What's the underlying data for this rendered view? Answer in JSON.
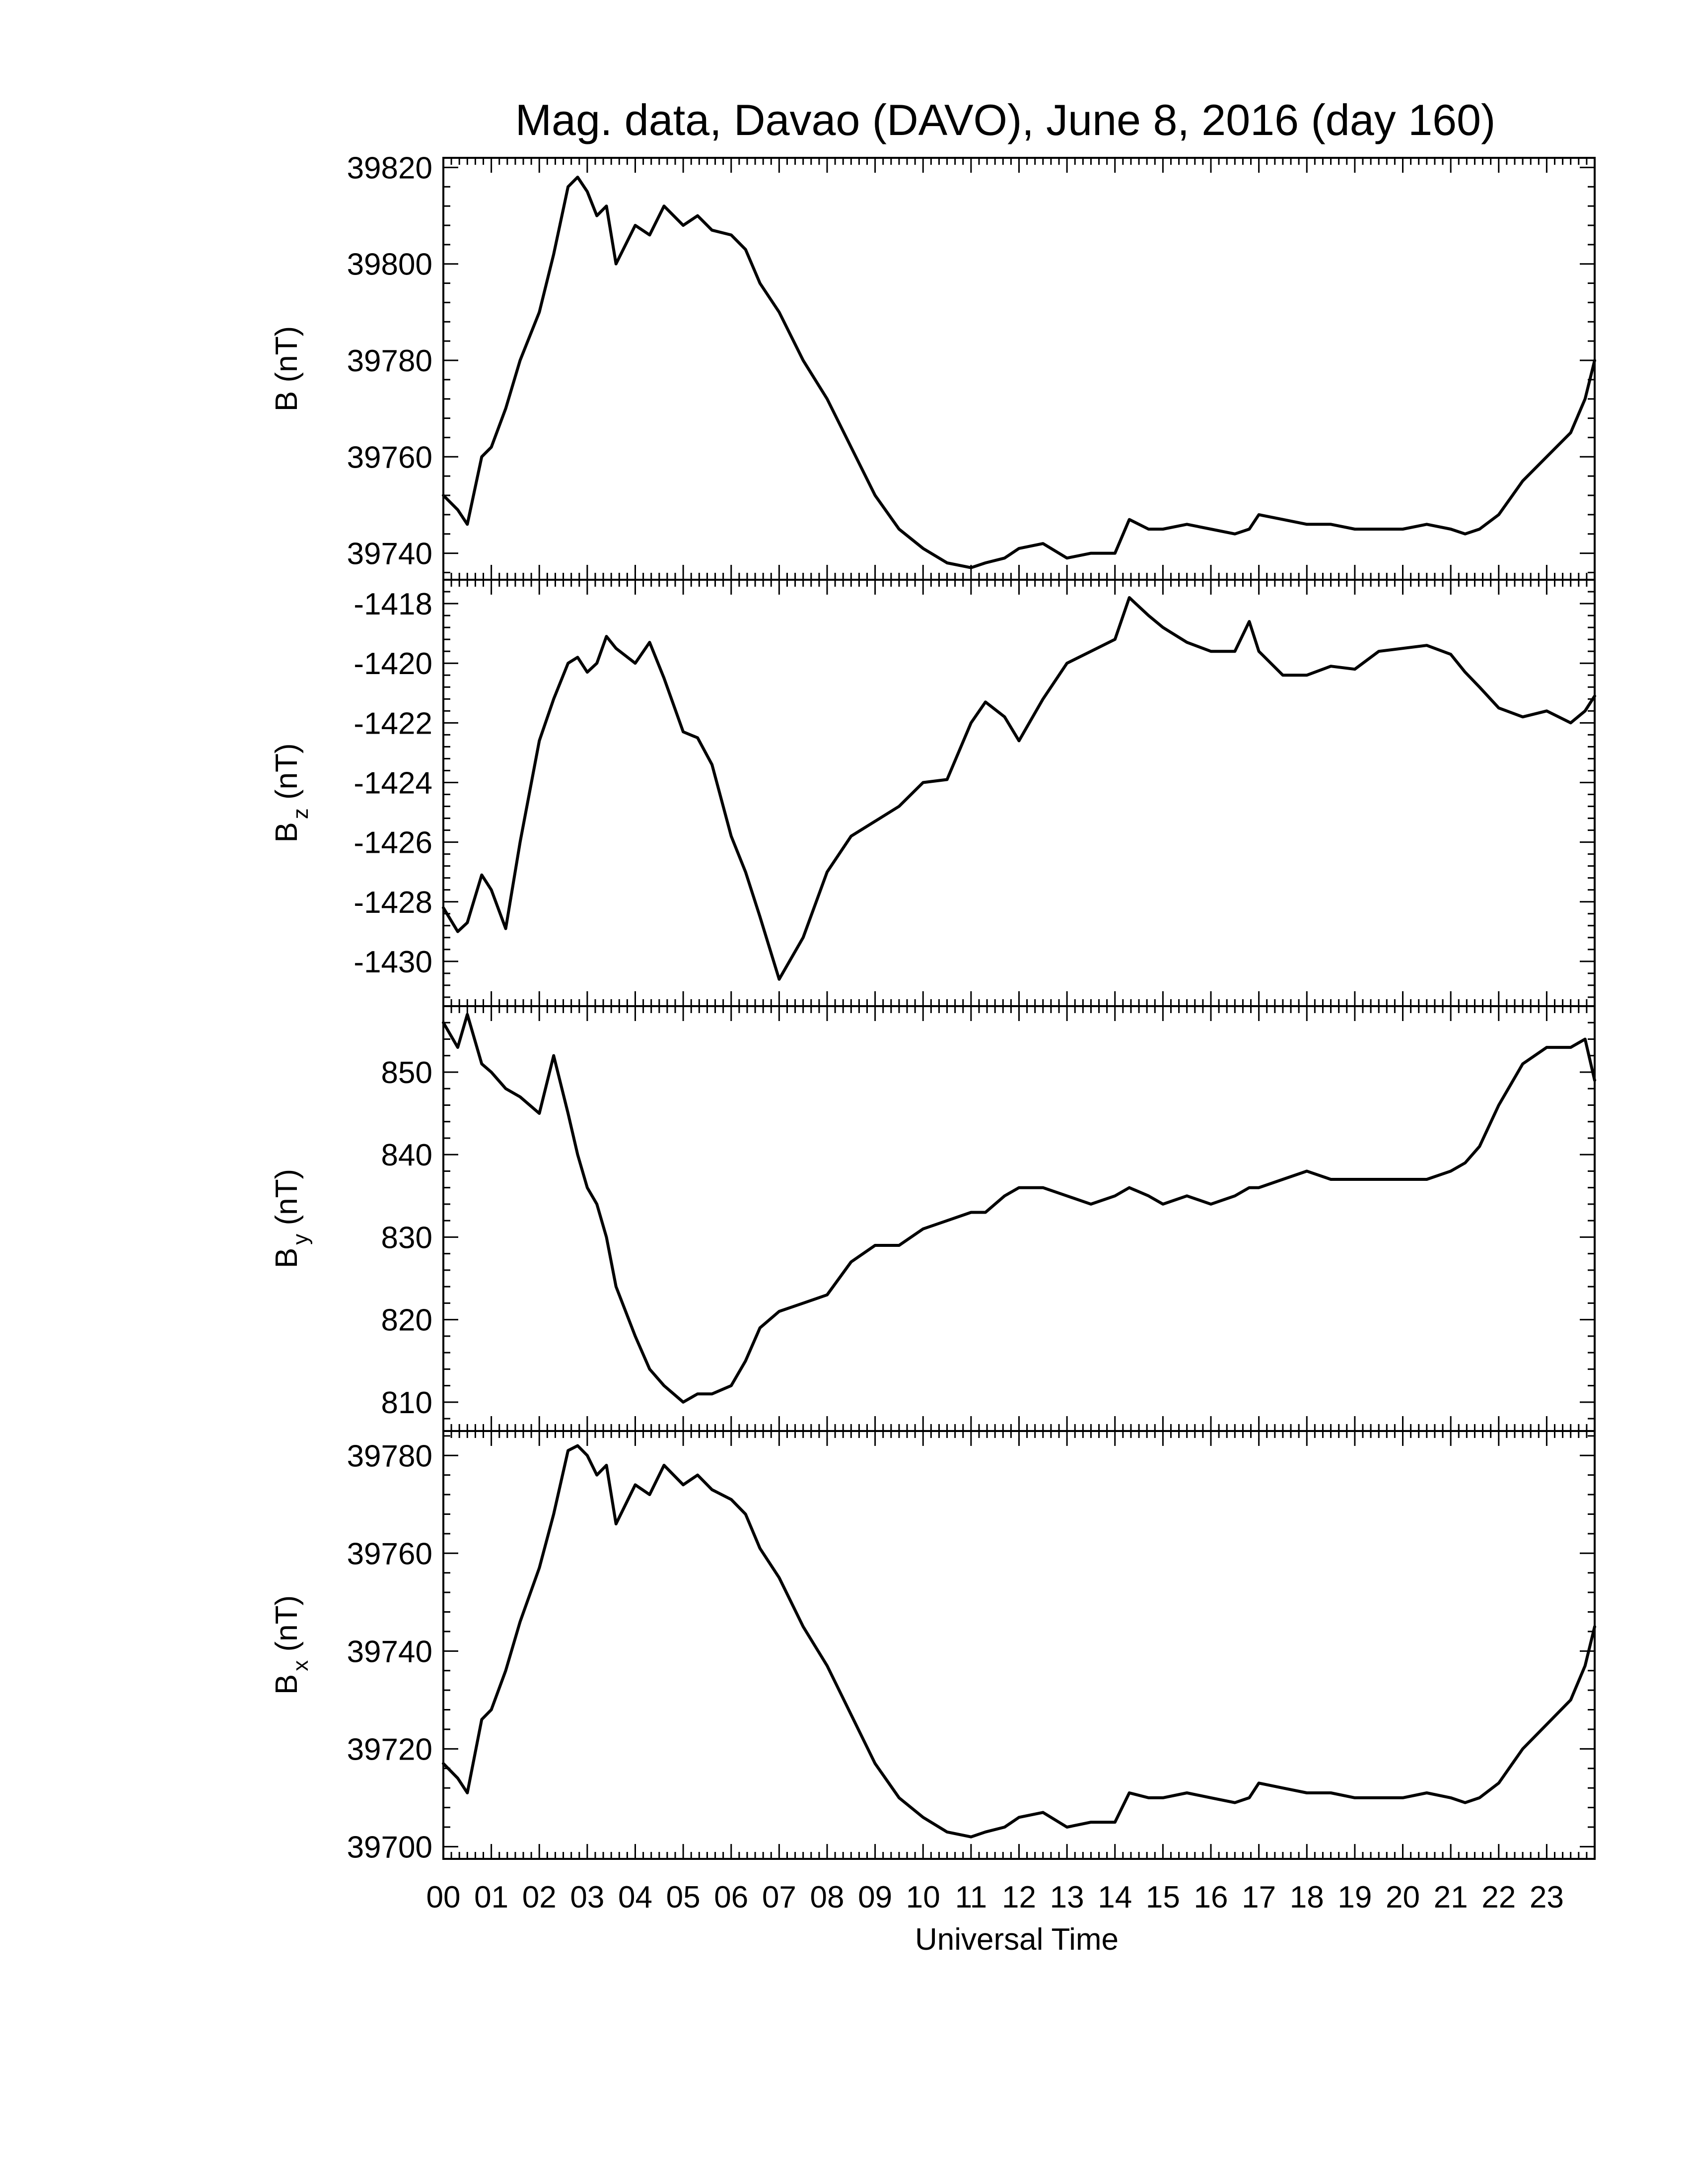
{
  "figure": {
    "title": "Mag. data, Davao (DAVO), June 8, 2016 (day 160)",
    "xlabel": "Universal Time",
    "line_color": "#000000",
    "background": "#ffffff"
  },
  "chart_data": [
    {
      "type": "line",
      "title": "Mag. data, Davao (DAVO), June 8, 2016 (day 160)",
      "ylabel": "B (nT)",
      "ylabel_main": "B",
      "ylabel_sub": "",
      "ylabel_unit": " (nT)",
      "xlim": [
        0,
        24
      ],
      "ylim": [
        39734.5,
        39822
      ],
      "yticks": [
        39740,
        39760,
        39780,
        39800,
        39820
      ],
      "ytick_labels": [
        "39740",
        "39760",
        "39780",
        "39800",
        "39820"
      ],
      "x": [
        0,
        0.3,
        0.5,
        0.8,
        1.0,
        1.3,
        1.6,
        2.0,
        2.3,
        2.6,
        2.8,
        3.0,
        3.2,
        3.4,
        3.6,
        4.0,
        4.3,
        4.6,
        5.0,
        5.3,
        5.6,
        6.0,
        6.3,
        6.6,
        7.0,
        7.5,
        8.0,
        8.5,
        9.0,
        9.5,
        10.0,
        10.5,
        11.0,
        11.3,
        11.7,
        12.0,
        12.5,
        13.0,
        13.5,
        14.0,
        14.3,
        14.7,
        15.0,
        15.5,
        16.0,
        16.5,
        16.8,
        17.0,
        17.5,
        18.0,
        18.5,
        19.0,
        19.5,
        20.0,
        20.5,
        21.0,
        21.3,
        21.6,
        22.0,
        22.5,
        23.0,
        23.5,
        23.8,
        24.0
      ],
      "values": [
        39752,
        39749,
        39746,
        39760,
        39762,
        39770,
        39780,
        39790,
        39802,
        39816,
        39818,
        39815,
        39810,
        39812,
        39800,
        39808,
        39806,
        39812,
        39808,
        39810,
        39807,
        39806,
        39803,
        39796,
        39790,
        39780,
        39772,
        39762,
        39752,
        39745,
        39741,
        39738,
        39737,
        39738,
        39739,
        39741,
        39742,
        39739,
        39740,
        39740,
        39747,
        39745,
        39745,
        39746,
        39745,
        39744,
        39745,
        39748,
        39747,
        39746,
        39746,
        39745,
        39745,
        39745,
        39746,
        39745,
        39744,
        39745,
        39748,
        39755,
        39760,
        39765,
        39772,
        39780
      ]
    },
    {
      "type": "line",
      "ylabel": "Bz (nT)",
      "ylabel_main": "B",
      "ylabel_sub": "z",
      "ylabel_unit": " (nT)",
      "xlim": [
        0,
        24
      ],
      "ylim": [
        -1431.5,
        -1417.2
      ],
      "yticks": [
        -1430,
        -1428,
        -1426,
        -1424,
        -1422,
        -1420,
        -1418
      ],
      "ytick_labels": [
        "-1430",
        "-1428",
        "-1426",
        "-1424",
        "-1422",
        "-1420",
        "-1418"
      ],
      "x": [
        0,
        0.3,
        0.5,
        0.8,
        1.0,
        1.3,
        1.6,
        2.0,
        2.3,
        2.6,
        2.8,
        3.0,
        3.2,
        3.4,
        3.6,
        4.0,
        4.3,
        4.6,
        5.0,
        5.3,
        5.6,
        6.0,
        6.3,
        6.6,
        7.0,
        7.5,
        8.0,
        8.5,
        9.0,
        9.5,
        10.0,
        10.5,
        11.0,
        11.3,
        11.7,
        12.0,
        12.5,
        13.0,
        13.5,
        14.0,
        14.3,
        14.7,
        15.0,
        15.5,
        16.0,
        16.5,
        16.8,
        17.0,
        17.5,
        18.0,
        18.5,
        19.0,
        19.5,
        20.0,
        20.5,
        21.0,
        21.3,
        21.6,
        22.0,
        22.5,
        23.0,
        23.5,
        23.8,
        24.0
      ],
      "values": [
        -1428.2,
        -1429.0,
        -1428.7,
        -1427.1,
        -1427.6,
        -1428.9,
        -1426.0,
        -1422.6,
        -1421.2,
        -1420.0,
        -1419.8,
        -1420.3,
        -1420.0,
        -1419.1,
        -1419.5,
        -1420.0,
        -1419.3,
        -1420.5,
        -1422.3,
        -1422.5,
        -1423.4,
        -1425.8,
        -1427.0,
        -1428.5,
        -1430.6,
        -1429.2,
        -1427.0,
        -1425.8,
        -1425.3,
        -1424.8,
        -1424.0,
        -1423.9,
        -1422.0,
        -1421.3,
        -1421.8,
        -1422.6,
        -1421.2,
        -1420.0,
        -1419.6,
        -1419.2,
        -1417.8,
        -1418.4,
        -1418.8,
        -1419.3,
        -1419.6,
        -1419.6,
        -1418.6,
        -1419.6,
        -1420.4,
        -1420.4,
        -1420.1,
        -1420.2,
        -1419.6,
        -1419.5,
        -1419.4,
        -1419.7,
        -1420.3,
        -1420.8,
        -1421.5,
        -1421.8,
        -1421.6,
        -1422.0,
        -1421.6,
        -1421.1
      ]
    },
    {
      "type": "line",
      "ylabel": "By (nT)",
      "ylabel_main": "B",
      "ylabel_sub": "y",
      "ylabel_unit": " (nT)",
      "xlim": [
        0,
        24
      ],
      "ylim": [
        806.5,
        858
      ],
      "yticks": [
        810,
        820,
        830,
        840,
        850
      ],
      "ytick_labels": [
        "810",
        "820",
        "830",
        "840",
        "850"
      ],
      "x": [
        0,
        0.3,
        0.5,
        0.8,
        1.0,
        1.3,
        1.6,
        2.0,
        2.3,
        2.6,
        2.8,
        3.0,
        3.2,
        3.4,
        3.6,
        4.0,
        4.3,
        4.6,
        5.0,
        5.3,
        5.6,
        6.0,
        6.3,
        6.6,
        7.0,
        7.5,
        8.0,
        8.5,
        9.0,
        9.5,
        10.0,
        10.5,
        11.0,
        11.3,
        11.7,
        12.0,
        12.5,
        13.0,
        13.5,
        14.0,
        14.3,
        14.7,
        15.0,
        15.5,
        16.0,
        16.5,
        16.8,
        17.0,
        17.5,
        18.0,
        18.5,
        19.0,
        19.5,
        20.0,
        20.5,
        21.0,
        21.3,
        21.6,
        22.0,
        22.5,
        23.0,
        23.5,
        23.8,
        24.0
      ],
      "values": [
        856,
        853,
        857,
        851,
        850,
        848,
        847,
        845,
        852,
        845,
        840,
        836,
        834,
        830,
        824,
        818,
        814,
        812,
        810,
        811,
        811,
        812,
        815,
        819,
        821,
        822,
        823,
        827,
        829,
        829,
        831,
        832,
        833,
        833,
        835,
        836,
        836,
        835,
        834,
        835,
        836,
        835,
        834,
        835,
        834,
        835,
        836,
        836,
        837,
        838,
        837,
        837,
        837,
        837,
        837,
        838,
        839,
        841,
        846,
        851,
        853,
        853,
        854,
        849
      ]
    },
    {
      "type": "line",
      "ylabel": "Bx (nT)",
      "ylabel_main": "B",
      "ylabel_sub": "x",
      "ylabel_unit": " (nT)",
      "xlim": [
        0,
        24
      ],
      "ylim": [
        39697.5,
        39785
      ],
      "yticks": [
        39700,
        39720,
        39740,
        39760,
        39780
      ],
      "ytick_labels": [
        "39700",
        "39720",
        "39740",
        "39760",
        "39780"
      ],
      "x": [
        0,
        0.3,
        0.5,
        0.8,
        1.0,
        1.3,
        1.6,
        2.0,
        2.3,
        2.6,
        2.8,
        3.0,
        3.2,
        3.4,
        3.6,
        4.0,
        4.3,
        4.6,
        5.0,
        5.3,
        5.6,
        6.0,
        6.3,
        6.6,
        7.0,
        7.5,
        8.0,
        8.5,
        9.0,
        9.5,
        10.0,
        10.5,
        11.0,
        11.3,
        11.7,
        12.0,
        12.5,
        13.0,
        13.5,
        14.0,
        14.3,
        14.7,
        15.0,
        15.5,
        16.0,
        16.5,
        16.8,
        17.0,
        17.5,
        18.0,
        18.5,
        19.0,
        19.5,
        20.0,
        20.5,
        21.0,
        21.3,
        21.6,
        22.0,
        22.5,
        23.0,
        23.5,
        23.8,
        24.0
      ],
      "values": [
        39717,
        39714,
        39711,
        39726,
        39728,
        39736,
        39746,
        39757,
        39768,
        39781,
        39782,
        39780,
        39776,
        39778,
        39766,
        39774,
        39772,
        39778,
        39774,
        39776,
        39773,
        39771,
        39768,
        39761,
        39755,
        39745,
        39737,
        39727,
        39717,
        39710,
        39706,
        39703,
        39702,
        39703,
        39704,
        39706,
        39707,
        39704,
        39705,
        39705,
        39711,
        39710,
        39710,
        39711,
        39710,
        39709,
        39710,
        39713,
        39712,
        39711,
        39711,
        39710,
        39710,
        39710,
        39711,
        39710,
        39709,
        39710,
        39713,
        39720,
        39725,
        39730,
        39737,
        39745
      ]
    }
  ],
  "x_axis": {
    "ticks": [
      0,
      1,
      2,
      3,
      4,
      5,
      6,
      7,
      8,
      9,
      10,
      11,
      12,
      13,
      14,
      15,
      16,
      17,
      18,
      19,
      20,
      21,
      22,
      23
    ],
    "tick_labels": [
      "00",
      "01",
      "02",
      "03",
      "04",
      "05",
      "06",
      "07",
      "08",
      "09",
      "10",
      "11",
      "12",
      "13",
      "14",
      "15",
      "16",
      "17",
      "18",
      "19",
      "20",
      "21",
      "22",
      "23"
    ]
  }
}
